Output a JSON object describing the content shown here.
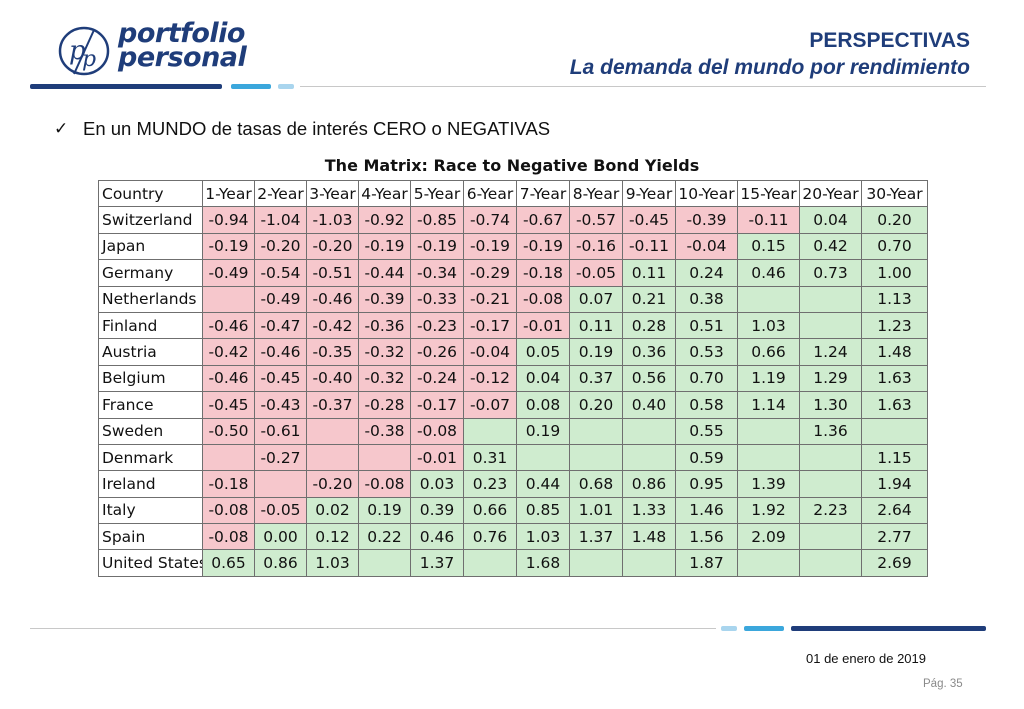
{
  "logo": {
    "line1": "portfolio",
    "line2": "personal",
    "mark": "pp-monogram-icon"
  },
  "header": {
    "title": "PERSPECTIVAS",
    "subtitle": "La demanda del mundo por rendimiento"
  },
  "bullet": {
    "icon": "checkmark-icon",
    "text": "En un MUNDO de tasas de interés CERO o NEGATIVAS"
  },
  "colors": {
    "brand": "#1f3d7a",
    "accent": "#3ba7dc",
    "light_accent": "#a9d5ee",
    "negative": "#f6c7cc",
    "positive": "#cfeccf"
  },
  "matrix": {
    "title": "The Matrix:  Race to Negative Bond Yields",
    "headers": [
      "Country",
      "1-Year",
      "2-Year",
      "3-Year",
      "4-Year",
      "5-Year",
      "6-Year",
      "7-Year",
      "8-Year",
      "9-Year",
      "10-Year",
      "15-Year",
      "20-Year",
      "30-Year"
    ],
    "rows": [
      {
        "country": "Switzerland",
        "values": [
          "-0.94",
          "-1.04",
          "-1.03",
          "-0.92",
          "-0.85",
          "-0.74",
          "-0.67",
          "-0.57",
          "-0.45",
          "-0.39",
          "-0.11",
          "0.04",
          "0.20"
        ]
      },
      {
        "country": "Japan",
        "values": [
          "-0.19",
          "-0.20",
          "-0.20",
          "-0.19",
          "-0.19",
          "-0.19",
          "-0.19",
          "-0.16",
          "-0.11",
          "-0.04",
          "0.15",
          "0.42",
          "0.70"
        ]
      },
      {
        "country": "Germany",
        "values": [
          "-0.49",
          "-0.54",
          "-0.51",
          "-0.44",
          "-0.34",
          "-0.29",
          "-0.18",
          "-0.05",
          "0.11",
          "0.24",
          "0.46",
          "0.73",
          "1.00"
        ]
      },
      {
        "country": "Netherlands",
        "values": [
          "",
          "-0.49",
          "-0.46",
          "-0.39",
          "-0.33",
          "-0.21",
          "-0.08",
          "0.07",
          "0.21",
          "0.38",
          "",
          "",
          "1.13"
        ]
      },
      {
        "country": "Finland",
        "values": [
          "-0.46",
          "-0.47",
          "-0.42",
          "-0.36",
          "-0.23",
          "-0.17",
          "-0.01",
          "0.11",
          "0.28",
          "0.51",
          "1.03",
          "",
          "1.23"
        ]
      },
      {
        "country": "Austria",
        "values": [
          "-0.42",
          "-0.46",
          "-0.35",
          "-0.32",
          "-0.26",
          "-0.04",
          "0.05",
          "0.19",
          "0.36",
          "0.53",
          "0.66",
          "1.24",
          "1.48"
        ]
      },
      {
        "country": "Belgium",
        "values": [
          "-0.46",
          "-0.45",
          "-0.40",
          "-0.32",
          "-0.24",
          "-0.12",
          "0.04",
          "0.37",
          "0.56",
          "0.70",
          "1.19",
          "1.29",
          "1.63"
        ]
      },
      {
        "country": "France",
        "values": [
          "-0.45",
          "-0.43",
          "-0.37",
          "-0.28",
          "-0.17",
          "-0.07",
          "0.08",
          "0.20",
          "0.40",
          "0.58",
          "1.14",
          "1.30",
          "1.63"
        ]
      },
      {
        "country": "Sweden",
        "values": [
          "-0.50",
          "-0.61",
          "",
          "-0.38",
          "-0.08",
          "",
          "0.19",
          "",
          "",
          "0.55",
          "",
          "1.36",
          ""
        ]
      },
      {
        "country": "Denmark",
        "values": [
          "",
          "-0.27",
          "",
          "",
          "-0.01",
          "0.31",
          "",
          "",
          "",
          "0.59",
          "",
          "",
          "1.15"
        ]
      },
      {
        "country": "Ireland",
        "values": [
          "-0.18",
          "",
          "-0.20",
          "-0.08",
          "0.03",
          "0.23",
          "0.44",
          "0.68",
          "0.86",
          "0.95",
          "1.39",
          "",
          "1.94"
        ]
      },
      {
        "country": "Italy",
        "values": [
          "-0.08",
          "-0.05",
          "0.02",
          "0.19",
          "0.39",
          "0.66",
          "0.85",
          "1.01",
          "1.33",
          "1.46",
          "1.92",
          "2.23",
          "2.64"
        ]
      },
      {
        "country": "Spain",
        "values": [
          "-0.08",
          "0.00",
          "0.12",
          "0.22",
          "0.46",
          "0.76",
          "1.03",
          "1.37",
          "1.48",
          "1.56",
          "2.09",
          "",
          "2.77"
        ]
      },
      {
        "country": "United States",
        "values": [
          "0.65",
          "0.86",
          "1.03",
          "",
          "1.37",
          "",
          "1.68",
          "",
          "",
          "1.87",
          "",
          "",
          "2.69"
        ]
      }
    ],
    "negative_cells": [
      [
        0,
        1,
        2,
        3,
        4,
        5,
        6,
        7,
        8,
        9,
        10
      ],
      [
        0,
        1,
        2,
        3,
        4,
        5,
        6,
        7,
        8,
        9
      ],
      [
        0,
        1,
        2,
        3,
        4,
        5,
        6,
        7
      ],
      [
        0,
        1,
        2,
        3,
        4,
        5,
        6
      ],
      [
        0,
        1,
        2,
        3,
        4,
        5,
        6
      ],
      [
        0,
        1,
        2,
        3,
        4,
        5
      ],
      [
        0,
        1,
        2,
        3,
        4,
        5
      ],
      [
        0,
        1,
        2,
        3,
        4,
        5
      ],
      [
        0,
        1,
        2,
        3,
        4
      ],
      [
        0,
        1,
        2,
        3,
        4
      ],
      [
        0,
        1,
        2,
        3
      ],
      [
        0,
        1
      ],
      [
        0
      ],
      []
    ]
  },
  "footer": {
    "date": "01 de enero de 2019",
    "page": "Pág. 35"
  }
}
